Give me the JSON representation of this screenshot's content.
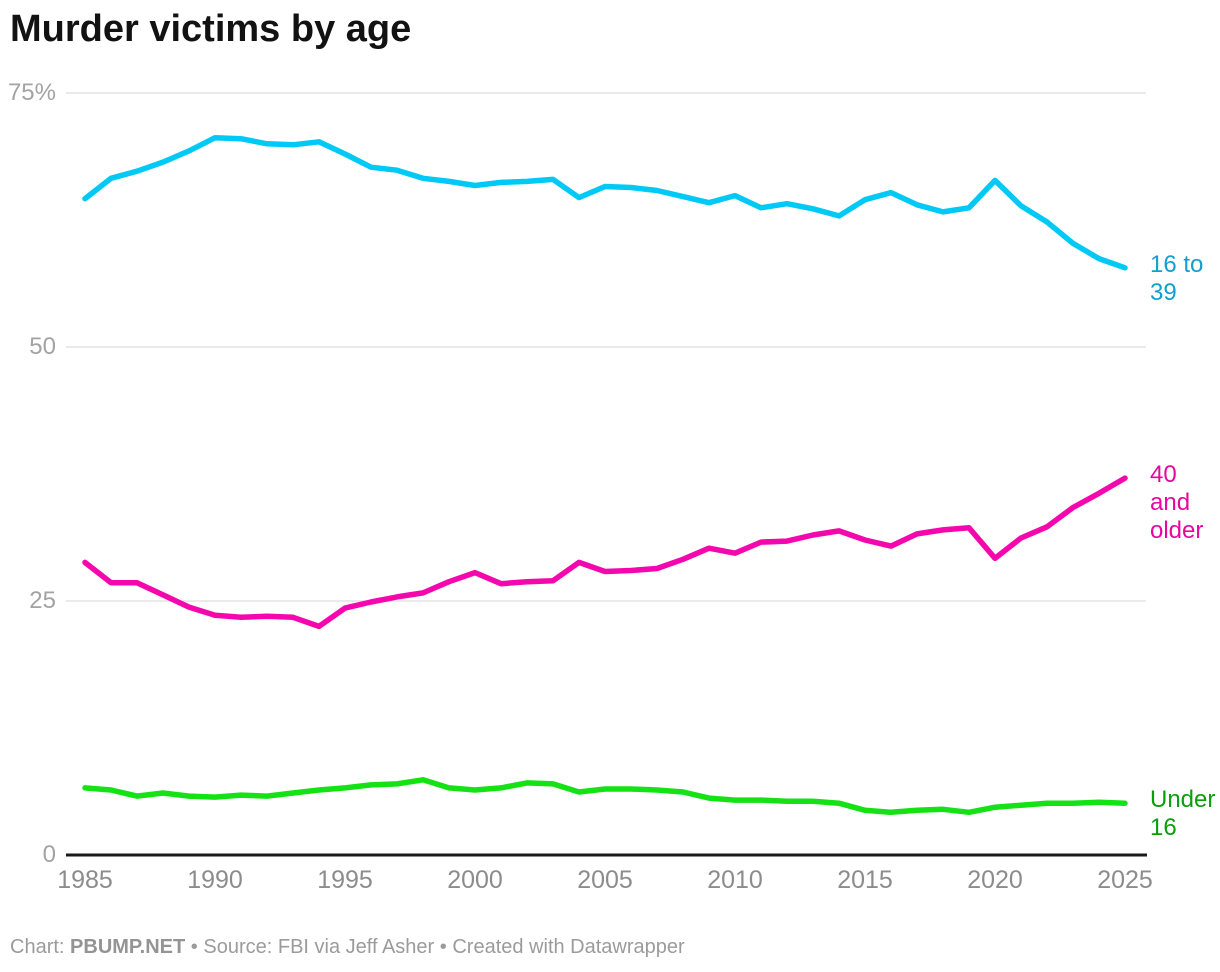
{
  "title": "Murder victims by age",
  "footer": {
    "prefix": "Chart: ",
    "brand": "PBUMP.NET",
    "middle": " • Source: FBI via Jeff Asher • ",
    "created": "Created with Datawrapper"
  },
  "chart_data": {
    "type": "line",
    "title": "Murder victims by age",
    "x": [
      1985,
      1986,
      1987,
      1988,
      1989,
      1990,
      1991,
      1992,
      1993,
      1994,
      1995,
      1996,
      1997,
      1998,
      1999,
      2000,
      2001,
      2002,
      2003,
      2004,
      2005,
      2006,
      2007,
      2008,
      2009,
      2010,
      2011,
      2012,
      2013,
      2014,
      2015,
      2016,
      2017,
      2018,
      2019,
      2020,
      2021,
      2022,
      2023,
      2024,
      2025
    ],
    "series": [
      {
        "name": "16 to 39",
        "label_lines": [
          "16 to",
          "39"
        ],
        "color": "#00C9F5",
        "label_color": "#129FCE",
        "values": [
          64.6,
          66.6,
          67.3,
          68.2,
          69.3,
          70.6,
          70.5,
          70.0,
          69.9,
          70.2,
          69.0,
          67.7,
          67.4,
          66.6,
          66.3,
          65.9,
          66.2,
          66.3,
          66.5,
          64.7,
          65.8,
          65.7,
          65.4,
          64.8,
          64.2,
          64.9,
          63.7,
          64.1,
          63.6,
          62.9,
          64.5,
          65.2,
          64.0,
          63.3,
          63.7,
          66.4,
          63.9,
          62.3,
          60.2,
          58.7,
          57.8
        ]
      },
      {
        "name": "40 and older",
        "label_lines": [
          "40",
          "and",
          "older"
        ],
        "color": "#F408AE",
        "label_color": "#E5089F",
        "values": [
          28.8,
          26.8,
          26.8,
          25.6,
          24.4,
          23.6,
          23.4,
          23.5,
          23.4,
          22.5,
          24.3,
          24.9,
          25.4,
          25.8,
          26.9,
          27.8,
          26.7,
          26.9,
          27.0,
          28.8,
          27.9,
          28.0,
          28.2,
          29.1,
          30.2,
          29.7,
          30.8,
          30.9,
          31.5,
          31.9,
          31.0,
          30.4,
          31.6,
          32.0,
          32.2,
          29.2,
          31.2,
          32.3,
          34.2,
          35.6,
          37.1
        ]
      },
      {
        "name": "Under 16",
        "label_lines": [
          "Under",
          "16"
        ],
        "color": "#15E215",
        "label_color": "#0B9E0B",
        "values": [
          6.6,
          6.4,
          5.8,
          6.1,
          5.8,
          5.7,
          5.9,
          5.8,
          6.1,
          6.4,
          6.6,
          6.9,
          7.0,
          7.4,
          6.6,
          6.4,
          6.6,
          7.1,
          7.0,
          6.2,
          6.5,
          6.5,
          6.4,
          6.2,
          5.6,
          5.4,
          5.4,
          5.3,
          5.3,
          5.1,
          4.4,
          4.2,
          4.4,
          4.5,
          4.2,
          4.7,
          4.9,
          5.1,
          5.1,
          5.2,
          5.1
        ]
      }
    ],
    "y_axis": {
      "min": 0,
      "max": 75,
      "ticks": [
        {
          "value": 75,
          "label": "75%"
        },
        {
          "value": 50,
          "label": "50"
        },
        {
          "value": 25,
          "label": "25"
        },
        {
          "value": 0,
          "label": "0"
        }
      ]
    },
    "x_axis": {
      "ticks": [
        1985,
        1990,
        1995,
        2000,
        2005,
        2010,
        2015,
        2020,
        2025
      ]
    },
    "grid": true,
    "legend_position": "right-of-line-end",
    "colors": {
      "grid_line": "#e4e4e4",
      "axis_line": "#1a1a1a",
      "y_tick_text": "#a3a3a3",
      "x_tick_text": "#8c8c8c",
      "background": "#ffffff"
    }
  }
}
